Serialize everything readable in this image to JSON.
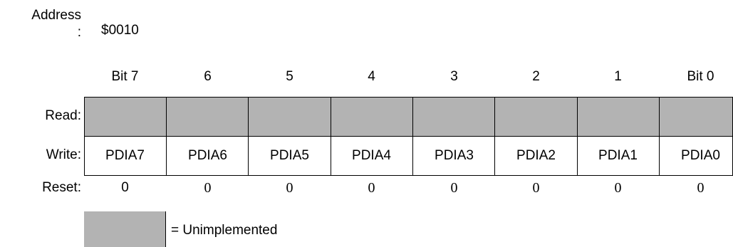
{
  "address": {
    "label_top": "Address",
    "label_colon": ":",
    "value": "$0010"
  },
  "bit_headers": [
    "Bit 7",
    "6",
    "5",
    "4",
    "3",
    "2",
    "1",
    "Bit 0"
  ],
  "row_labels": {
    "read": "Read:",
    "write": "Write:",
    "reset": "Reset:"
  },
  "write_bits": [
    "PDIA7",
    "PDIA6",
    "PDIA5",
    "PDIA4",
    "PDIA3",
    "PDIA2",
    "PDIA1",
    "PDIA0"
  ],
  "reset_values": [
    "0",
    "0",
    "0",
    "0",
    "0",
    "0",
    "0",
    "0"
  ],
  "legend": {
    "text": "= Unimplemented"
  },
  "colors": {
    "unimplemented_fill": "#b3b3b3",
    "grid": "#000000"
  }
}
